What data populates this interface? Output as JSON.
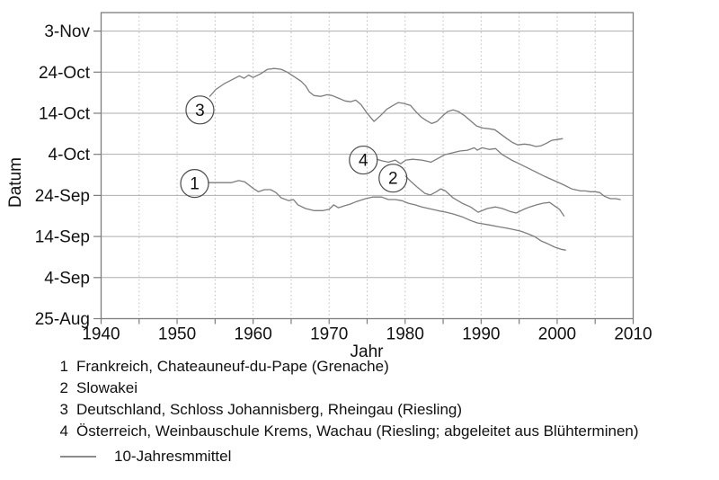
{
  "colors": {
    "curve": "#7d7d7d",
    "frame": "#7d7d7d",
    "grid_horizontal": "#aeaeae",
    "grid_vertical": "#bdbdbd",
    "tick": "#7d7d7d",
    "text": "#111111",
    "marker_stroke": "#4a4a4a"
  },
  "legend": {
    "items": [
      {
        "num": "1",
        "label": "Frankreich, Chateauneuf-du-Pape (Grenache)"
      },
      {
        "num": "2",
        "label": "Slowakei"
      },
      {
        "num": "3",
        "label": "Deutschland, Schloss Johannisberg, Rheingau (Riesling)"
      },
      {
        "num": "4",
        "label": "Österreich, Weinbauschule Krems, Wachau (Riesling; abgeleitet aus Blühterminen)"
      }
    ],
    "line_label": "10-Jahresmmittel"
  },
  "chart_data": {
    "type": "line",
    "title": "",
    "xlabel": "Jahr",
    "ylabel": "Datum",
    "xlim": [
      1940,
      2010
    ],
    "x_ticks": [
      1940,
      1950,
      1960,
      1970,
      1980,
      1990,
      2000,
      2010
    ],
    "x_minor_tick_step": 5,
    "grid": {
      "horizontal": "solid",
      "vertical": "dashed, every 5 years"
    },
    "y_unit": "days after 25-Aug",
    "ylim": [
      0,
      74.5
    ],
    "y_ticks": [
      {
        "label": "3-Nov",
        "d": 70
      },
      {
        "label": "24-Oct",
        "d": 60
      },
      {
        "label": "14-Oct",
        "d": 50
      },
      {
        "label": "4-Oct",
        "d": 40
      },
      {
        "label": "24-Sep",
        "d": 30
      },
      {
        "label": "14-Sep",
        "d": 20
      },
      {
        "label": "4-Sep",
        "d": 10
      },
      {
        "label": "25-Aug",
        "d": 0
      }
    ],
    "legend_position": "below",
    "line_legend": "10-Jahresmmittel",
    "markers": [
      {
        "label": "1",
        "year": 1952.3,
        "d": 32.9
      },
      {
        "label": "2",
        "year": 1978.4,
        "d": 34.2
      },
      {
        "label": "3",
        "year": 1953.0,
        "d": 50.8
      },
      {
        "label": "4",
        "year": 1974.5,
        "d": 38.6
      }
    ],
    "series": [
      {
        "id": 1,
        "name": "Frankreich, Chateauneuf-du-Pape (Grenache)",
        "points": [
          [
            1954.1,
            33.1
          ],
          [
            1955.4,
            33.1
          ],
          [
            1957.1,
            33.1
          ],
          [
            1958.1,
            33.6
          ],
          [
            1958.9,
            33.3
          ],
          [
            1960.1,
            31.6
          ],
          [
            1960.7,
            30.9
          ],
          [
            1961.5,
            31.4
          ],
          [
            1962.3,
            31.4
          ],
          [
            1963.0,
            30.7
          ],
          [
            1963.7,
            29.4
          ],
          [
            1964.7,
            28.7
          ],
          [
            1965.3,
            29.0
          ],
          [
            1965.9,
            27.7
          ],
          [
            1966.9,
            26.8
          ],
          [
            1968.0,
            26.3
          ],
          [
            1969.2,
            26.3
          ],
          [
            1970.0,
            26.6
          ],
          [
            1970.6,
            27.7
          ],
          [
            1971.2,
            27.0
          ],
          [
            1971.9,
            27.4
          ],
          [
            1972.8,
            27.9
          ],
          [
            1973.6,
            28.5
          ],
          [
            1974.8,
            29.2
          ],
          [
            1975.7,
            29.6
          ],
          [
            1976.9,
            29.6
          ],
          [
            1977.8,
            29.0
          ],
          [
            1978.7,
            29.0
          ],
          [
            1979.6,
            28.7
          ],
          [
            1980.4,
            28.1
          ],
          [
            1981.3,
            27.7
          ],
          [
            1982.2,
            27.2
          ],
          [
            1983.1,
            26.8
          ],
          [
            1984.3,
            26.3
          ],
          [
            1985.4,
            25.9
          ],
          [
            1986.3,
            25.5
          ],
          [
            1987.5,
            24.8
          ],
          [
            1988.6,
            23.9
          ],
          [
            1989.5,
            23.3
          ],
          [
            1991.1,
            22.8
          ],
          [
            1992.2,
            22.4
          ],
          [
            1993.4,
            22.0
          ],
          [
            1994.2,
            21.7
          ],
          [
            1995.2,
            21.3
          ],
          [
            1996.1,
            20.7
          ],
          [
            1997.0,
            20.0
          ],
          [
            1997.9,
            18.9
          ],
          [
            1998.7,
            18.3
          ],
          [
            1999.7,
            17.4
          ],
          [
            2000.5,
            16.9
          ],
          [
            2001.1,
            16.7
          ]
        ]
      },
      {
        "id": 2,
        "name": "Slowakei",
        "points": [
          [
            1980.1,
            34.6
          ],
          [
            1980.8,
            33.3
          ],
          [
            1981.6,
            32.0
          ],
          [
            1982.6,
            30.5
          ],
          [
            1983.3,
            30.1
          ],
          [
            1984.1,
            30.9
          ],
          [
            1984.7,
            31.6
          ],
          [
            1985.3,
            31.1
          ],
          [
            1986.3,
            29.4
          ],
          [
            1987.5,
            28.1
          ],
          [
            1988.6,
            27.2
          ],
          [
            1989.6,
            25.9
          ],
          [
            1990.8,
            26.8
          ],
          [
            1991.9,
            27.2
          ],
          [
            1992.8,
            26.8
          ],
          [
            1993.8,
            26.1
          ],
          [
            1994.6,
            25.7
          ],
          [
            1995.6,
            26.6
          ],
          [
            1996.4,
            27.2
          ],
          [
            1997.3,
            27.7
          ],
          [
            1998.1,
            28.1
          ],
          [
            1999.0,
            28.3
          ],
          [
            1999.7,
            27.4
          ],
          [
            2000.3,
            26.6
          ],
          [
            2000.9,
            25.0
          ]
        ]
      },
      {
        "id": 3,
        "name": "Deutschland, Schloss Johannisberg, Rheingau (Riesling)",
        "points": [
          [
            1954.3,
            54.1
          ],
          [
            1955.1,
            55.8
          ],
          [
            1956.2,
            57.2
          ],
          [
            1957.6,
            58.5
          ],
          [
            1958.2,
            59.1
          ],
          [
            1958.8,
            58.5
          ],
          [
            1959.4,
            59.3
          ],
          [
            1960.0,
            58.7
          ],
          [
            1961.0,
            59.6
          ],
          [
            1961.9,
            60.7
          ],
          [
            1962.8,
            60.9
          ],
          [
            1963.7,
            60.7
          ],
          [
            1964.5,
            60.0
          ],
          [
            1965.4,
            58.9
          ],
          [
            1966.3,
            57.8
          ],
          [
            1966.9,
            56.7
          ],
          [
            1967.4,
            55.2
          ],
          [
            1968.0,
            54.3
          ],
          [
            1968.9,
            54.1
          ],
          [
            1969.7,
            54.5
          ],
          [
            1970.4,
            54.3
          ],
          [
            1971.2,
            53.7
          ],
          [
            1972.1,
            53.0
          ],
          [
            1972.8,
            52.8
          ],
          [
            1973.5,
            53.2
          ],
          [
            1974.2,
            52.1
          ],
          [
            1975.0,
            50.0
          ],
          [
            1975.9,
            48.0
          ],
          [
            1976.8,
            49.5
          ],
          [
            1977.6,
            51.0
          ],
          [
            1978.4,
            51.9
          ],
          [
            1979.1,
            52.6
          ],
          [
            1979.8,
            52.4
          ],
          [
            1980.7,
            51.9
          ],
          [
            1981.4,
            50.4
          ],
          [
            1982.1,
            49.1
          ],
          [
            1982.8,
            48.2
          ],
          [
            1983.5,
            47.5
          ],
          [
            1984.2,
            48.0
          ],
          [
            1984.9,
            49.3
          ],
          [
            1985.6,
            50.4
          ],
          [
            1986.3,
            50.8
          ],
          [
            1987.0,
            50.4
          ],
          [
            1987.9,
            49.3
          ],
          [
            1988.7,
            48.0
          ],
          [
            1989.4,
            46.9
          ],
          [
            1990.2,
            46.4
          ],
          [
            1991.1,
            46.2
          ],
          [
            1991.8,
            46.0
          ],
          [
            1992.6,
            44.9
          ],
          [
            1993.4,
            43.8
          ],
          [
            1994.1,
            42.9
          ],
          [
            1994.8,
            42.3
          ],
          [
            1995.7,
            42.5
          ],
          [
            1996.5,
            42.3
          ],
          [
            1997.2,
            41.9
          ],
          [
            1997.9,
            42.1
          ],
          [
            1998.6,
            42.7
          ],
          [
            1999.3,
            43.4
          ],
          [
            2000.0,
            43.6
          ],
          [
            2000.7,
            43.8
          ]
        ]
      },
      {
        "id": 4,
        "name": "Österreich, Weinbauschule Krems, Wachau (Riesling; abgeleitet aus Blühterminen)",
        "points": [
          [
            1976.3,
            38.8
          ],
          [
            1977.0,
            38.4
          ],
          [
            1977.8,
            38.1
          ],
          [
            1978.7,
            38.6
          ],
          [
            1979.4,
            37.7
          ],
          [
            1980.1,
            38.6
          ],
          [
            1981.0,
            38.8
          ],
          [
            1982.2,
            38.6
          ],
          [
            1983.4,
            38.1
          ],
          [
            1984.3,
            39.0
          ],
          [
            1985.2,
            39.9
          ],
          [
            1986.1,
            40.3
          ],
          [
            1987.2,
            40.8
          ],
          [
            1988.2,
            41.0
          ],
          [
            1989.1,
            41.6
          ],
          [
            1989.5,
            41.0
          ],
          [
            1990.1,
            41.6
          ],
          [
            1991.1,
            41.2
          ],
          [
            1991.9,
            41.4
          ],
          [
            1992.8,
            39.9
          ],
          [
            1994.0,
            38.6
          ],
          [
            1994.8,
            37.9
          ],
          [
            1996.0,
            36.8
          ],
          [
            1997.2,
            35.7
          ],
          [
            1998.4,
            34.6
          ],
          [
            1999.6,
            33.6
          ],
          [
            2000.7,
            32.7
          ],
          [
            2001.9,
            31.6
          ],
          [
            2003.1,
            31.1
          ],
          [
            2003.7,
            31.1
          ],
          [
            2004.4,
            30.9
          ],
          [
            2005.0,
            30.9
          ],
          [
            2005.6,
            30.7
          ],
          [
            2006.2,
            29.8
          ],
          [
            2007.0,
            29.2
          ],
          [
            2007.7,
            29.2
          ],
          [
            2008.3,
            29.0
          ]
        ]
      }
    ]
  }
}
